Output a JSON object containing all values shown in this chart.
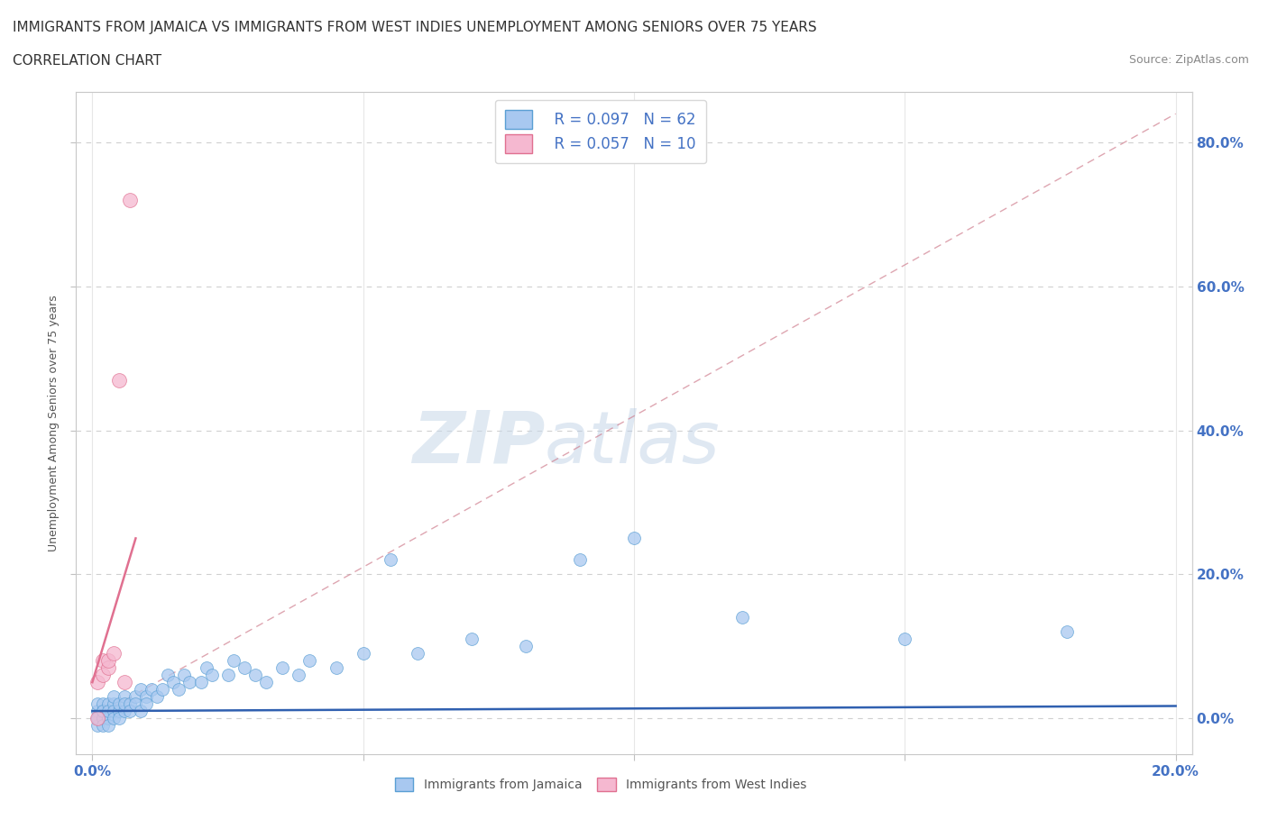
{
  "title_line1": "IMMIGRANTS FROM JAMAICA VS IMMIGRANTS FROM WEST INDIES UNEMPLOYMENT AMONG SENIORS OVER 75 YEARS",
  "title_line2": "CORRELATION CHART",
  "source": "Source: ZipAtlas.com",
  "ylabel_label": "Unemployment Among Seniors over 75 years",
  "legend_jamaica": "Immigrants from Jamaica",
  "legend_west_indies": "Immigrants from West Indies",
  "legend_r_jamaica": "R = 0.097",
  "legend_n_jamaica": "N = 62",
  "legend_r_west_indies": "R = 0.057",
  "legend_n_west_indies": "N = 10",
  "color_jamaica": "#a8c8f0",
  "color_jamaica_edge": "#5a9fd4",
  "color_west_indies": "#f5b8d0",
  "color_west_indies_edge": "#e07090",
  "color_trend_jamaica": "#3060b0",
  "color_trend_west_indies": "#e07090",
  "color_diag": "#d08090",
  "color_text_blue": "#4472c4",
  "color_grid": "#d0d0d0",
  "watermark_zip": "ZIP",
  "watermark_atlas": "atlas",
  "jamaica_x": [
    0.001,
    0.001,
    0.001,
    0.001,
    0.001,
    0.002,
    0.002,
    0.002,
    0.002,
    0.002,
    0.003,
    0.003,
    0.003,
    0.003,
    0.004,
    0.004,
    0.004,
    0.004,
    0.005,
    0.005,
    0.005,
    0.006,
    0.006,
    0.006,
    0.007,
    0.007,
    0.008,
    0.008,
    0.009,
    0.009,
    0.01,
    0.01,
    0.011,
    0.012,
    0.013,
    0.014,
    0.015,
    0.016,
    0.017,
    0.018,
    0.02,
    0.021,
    0.022,
    0.025,
    0.026,
    0.028,
    0.03,
    0.032,
    0.035,
    0.038,
    0.04,
    0.045,
    0.05,
    0.055,
    0.06,
    0.07,
    0.08,
    0.09,
    0.1,
    0.12,
    0.15,
    0.18
  ],
  "jamaica_y": [
    0.0,
    -0.01,
    0.01,
    0.02,
    0.0,
    0.01,
    0.0,
    0.02,
    -0.01,
    0.01,
    0.0,
    0.02,
    0.01,
    -0.01,
    0.02,
    0.01,
    0.0,
    0.03,
    0.01,
    0.02,
    0.0,
    0.03,
    0.01,
    0.02,
    0.02,
    0.01,
    0.03,
    0.02,
    0.04,
    0.01,
    0.03,
    0.02,
    0.04,
    0.03,
    0.04,
    0.06,
    0.05,
    0.04,
    0.06,
    0.05,
    0.05,
    0.07,
    0.06,
    0.06,
    0.08,
    0.07,
    0.06,
    0.05,
    0.07,
    0.06,
    0.08,
    0.07,
    0.09,
    0.22,
    0.09,
    0.11,
    0.1,
    0.22,
    0.25,
    0.14,
    0.11,
    0.12
  ],
  "west_indies_x": [
    0.001,
    0.001,
    0.002,
    0.002,
    0.003,
    0.003,
    0.004,
    0.005,
    0.006,
    0.007
  ],
  "west_indies_y": [
    0.0,
    0.05,
    0.06,
    0.08,
    0.07,
    0.08,
    0.09,
    0.47,
    0.05,
    0.72
  ],
  "xlim": [
    -0.003,
    0.203
  ],
  "ylim": [
    -0.05,
    0.87
  ],
  "ytick_vals": [
    0.0,
    0.2,
    0.4,
    0.6,
    0.8
  ],
  "ytick_labels_right": [
    "0.0%",
    "20.0%",
    "40.0%",
    "60.0%",
    "80.0%"
  ],
  "xtick_vals": [
    0.0,
    0.05,
    0.1,
    0.15,
    0.2
  ],
  "xtick_labels": [
    "0.0%",
    "",
    "",
    "",
    "20.0%"
  ],
  "marker_size_jamaica": 100,
  "marker_size_west_indies": 130,
  "title_fontsize": 11,
  "axis_label_fontsize": 9,
  "legend_fontsize": 12,
  "tick_label_color": "#4472c4",
  "tick_label_fontsize": 11
}
